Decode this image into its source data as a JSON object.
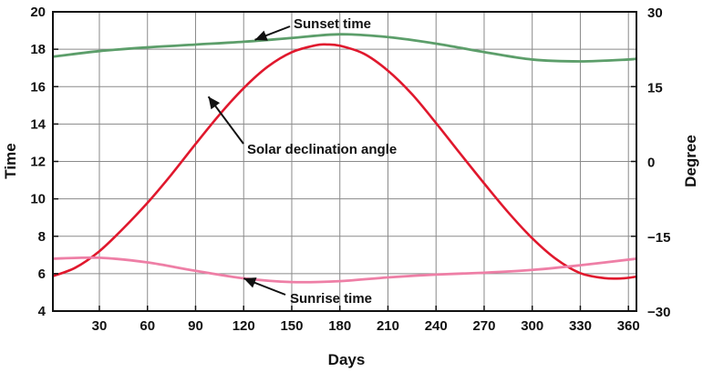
{
  "chart_data": {
    "type": "line",
    "xlabel": "Days",
    "ylabel_left": "Time",
    "ylabel_right": "Degree",
    "xlim": [
      1,
      365
    ],
    "ylim_left": [
      4,
      20
    ],
    "ylim_right": [
      -30,
      30
    ],
    "grid": true,
    "x_ticks": [
      30,
      60,
      90,
      120,
      150,
      180,
      210,
      240,
      270,
      300,
      330,
      360
    ],
    "y_left_ticks": [
      4,
      6,
      8,
      10,
      12,
      14,
      16,
      18,
      20
    ],
    "y_right_ticks": [
      -30,
      -15,
      0,
      15,
      30
    ],
    "series": [
      {
        "name": "Sunset time",
        "axis": "left",
        "color": "#5c9e6a",
        "x": [
          1,
          30,
          60,
          90,
          120,
          150,
          180,
          210,
          240,
          270,
          300,
          330,
          360,
          365
        ],
        "y": [
          17.6,
          17.9,
          18.1,
          18.25,
          18.4,
          18.6,
          18.8,
          18.65,
          18.3,
          17.85,
          17.45,
          17.35,
          17.45,
          17.5
        ]
      },
      {
        "name": "Solar declination angle",
        "axis": "right",
        "color": "#e0182d",
        "x": [
          1,
          15,
          30,
          45,
          60,
          75,
          90,
          105,
          120,
          135,
          150,
          165,
          172,
          180,
          195,
          210,
          225,
          240,
          255,
          270,
          285,
          300,
          315,
          330,
          345,
          356,
          365
        ],
        "y": [
          -23.0,
          -21.3,
          -18.0,
          -13.4,
          -8.3,
          -2.6,
          3.5,
          9.4,
          14.7,
          19.0,
          21.9,
          23.3,
          23.45,
          23.2,
          21.6,
          18.2,
          13.5,
          7.7,
          1.6,
          -4.4,
          -10.2,
          -15.4,
          -19.6,
          -22.4,
          -23.4,
          -23.45,
          -23.1
        ]
      },
      {
        "name": "Sunrise time",
        "axis": "left",
        "color": "#ee7fa6",
        "x": [
          1,
          30,
          60,
          90,
          120,
          150,
          180,
          210,
          240,
          270,
          300,
          330,
          365
        ],
        "y": [
          6.8,
          6.85,
          6.6,
          6.15,
          5.75,
          5.55,
          5.6,
          5.8,
          5.95,
          6.05,
          6.2,
          6.45,
          6.8
        ]
      }
    ],
    "annotations": [
      {
        "text": "Sunset time",
        "points_to": {
          "x": 127,
          "y": 18.5,
          "axis": "left"
        }
      },
      {
        "text": "Solar declination angle",
        "points_to": {
          "x": 98,
          "y": 13.0,
          "axis": "right"
        }
      },
      {
        "text": "Sunrise time",
        "points_to": {
          "x": 120,
          "y": 5.75,
          "axis": "left"
        }
      }
    ]
  }
}
